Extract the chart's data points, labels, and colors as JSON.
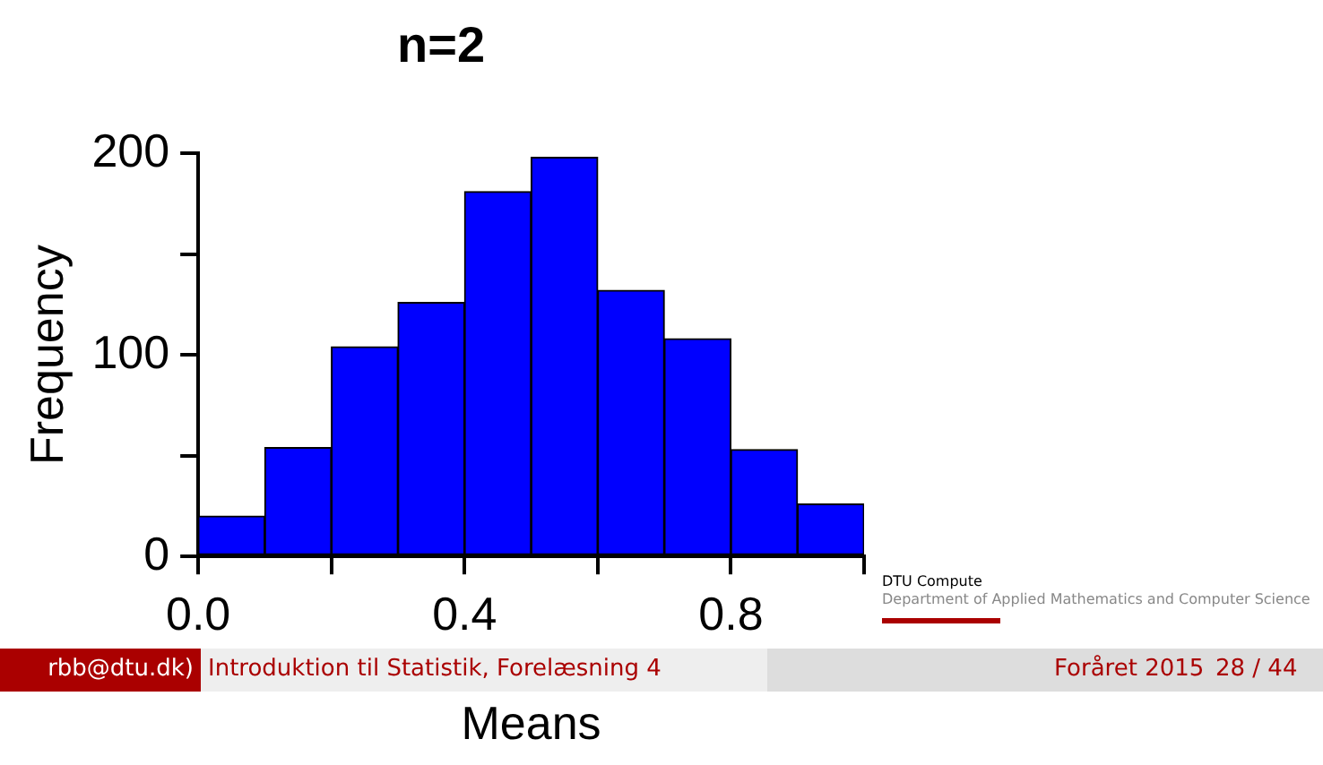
{
  "chart_data": {
    "type": "histogram",
    "title": "n=2",
    "xlabel": "Means",
    "ylabel": "Frequency",
    "bins": [
      0,
      0.1,
      0.2,
      0.3,
      0.4,
      0.5,
      0.6,
      0.7,
      0.8,
      0.9,
      1.0
    ],
    "values": [
      20,
      54,
      104,
      126,
      181,
      198,
      132,
      108,
      53,
      26
    ],
    "color": "#0000ff",
    "xlim": [
      0,
      1
    ],
    "xticks": [
      {
        "value": 0,
        "label": "0.0"
      },
      {
        "value": 0.2,
        "label": null
      },
      {
        "value": 0.4,
        "label": "0.4"
      },
      {
        "value": 0.6,
        "label": null
      },
      {
        "value": 0.8,
        "label": "0.8"
      },
      {
        "value": 1.0,
        "label": null
      }
    ],
    "ylim": [
      0,
      200
    ],
    "yticks": [
      0,
      {
        "value": 50,
        "label": null
      },
      100,
      {
        "value": 150,
        "label": null
      },
      200
    ],
    "grid": false,
    "legend": false,
    "annotations": [
      "DTU Compute",
      "Department of Applied Mathematics and Computer Science",
      "rbb@dtu.dk)",
      "Introduktion til Statistik, Forelæsning 4",
      "Foråret 2015",
      "28 / 44"
    ]
  }
}
